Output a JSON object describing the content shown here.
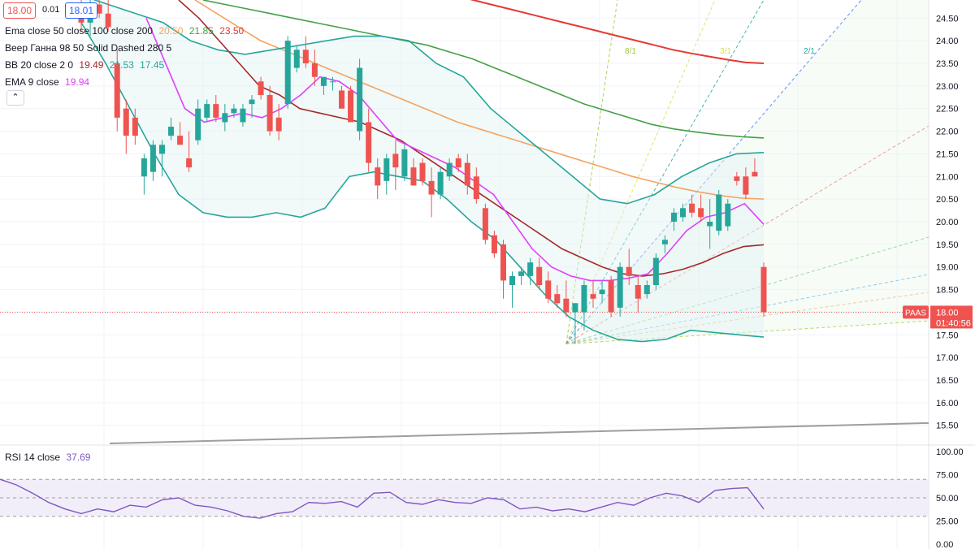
{
  "header": {
    "bid": "18.00",
    "spread": "0.01",
    "ask": "18.01"
  },
  "legend": {
    "ema": {
      "name": "Ema close 50 close 100 close 200",
      "v50": "20.50",
      "v100": "21.85",
      "v200": "23.50"
    },
    "gann": {
      "name": "Веер Ганна 98 50 Solid Dashed 280 5"
    },
    "bb": {
      "name": "BB 20 close 2 0",
      "mid": "19.49",
      "upper": "21.53",
      "lower": "17.45"
    },
    "ema9": {
      "name": "EMA 9 close",
      "value": "19.94"
    },
    "rsi": {
      "name": "RSI 14 close",
      "value": "37.69"
    }
  },
  "colors": {
    "up": "#26a69a",
    "down": "#ef5350",
    "ema50": "#f4a460",
    "ema100": "#43a047",
    "ema200": "#e53935",
    "bb": "#26a69a",
    "bb_mid": "#a52a2a",
    "ema9": "#e040fb",
    "rsi": "#7e57c2"
  },
  "price_tag": {
    "symbol": "PAAS",
    "price": "18.00",
    "countdown": "01:40:56"
  },
  "chart_data": {
    "type": "candlestick",
    "yaxis": {
      "ticks": [
        "24.50",
        "24.00",
        "23.50",
        "23.00",
        "22.50",
        "22.00",
        "21.50",
        "21.00",
        "20.50",
        "20.00",
        "19.50",
        "19.00",
        "18.50",
        "18.00",
        "17.50",
        "17.00",
        "16.50",
        "16.00",
        "15.50"
      ],
      "range": [
        15.1,
        24.9
      ]
    },
    "rsi_axis": {
      "ticks": [
        "100.00",
        "75.00",
        "50.00",
        "25.00",
        "0.00"
      ],
      "range": [
        0,
        100
      ],
      "band": [
        30,
        70
      ]
    },
    "fan_labels": [
      "8/1",
      "3/1",
      "2/1"
    ],
    "candles": [
      {
        "o": 24.5,
        "h": 25.0,
        "l": 24.2,
        "c": 24.4
      },
      {
        "o": 24.4,
        "h": 24.9,
        "l": 24.1,
        "c": 24.8
      },
      {
        "o": 24.8,
        "h": 25.2,
        "l": 24.5,
        "c": 24.6
      },
      {
        "o": 24.6,
        "h": 24.9,
        "l": 24.2,
        "c": 24.3
      },
      {
        "o": 23.5,
        "h": 23.8,
        "l": 22.0,
        "c": 22.3
      },
      {
        "o": 22.5,
        "h": 22.7,
        "l": 21.5,
        "c": 21.9
      },
      {
        "o": 22.3,
        "h": 22.5,
        "l": 21.7,
        "c": 21.9
      },
      {
        "o": 21.0,
        "h": 21.5,
        "l": 20.6,
        "c": 21.4
      },
      {
        "o": 21.1,
        "h": 21.8,
        "l": 20.9,
        "c": 21.7
      },
      {
        "o": 21.5,
        "h": 21.8,
        "l": 21.0,
        "c": 21.7
      },
      {
        "o": 21.9,
        "h": 22.3,
        "l": 21.8,
        "c": 22.1
      },
      {
        "o": 21.9,
        "h": 22.2,
        "l": 21.7,
        "c": 21.7
      },
      {
        "o": 21.4,
        "h": 22.0,
        "l": 21.1,
        "c": 21.2
      },
      {
        "o": 21.8,
        "h": 22.7,
        "l": 21.7,
        "c": 22.5
      },
      {
        "o": 22.3,
        "h": 22.7,
        "l": 22.2,
        "c": 22.6
      },
      {
        "o": 22.6,
        "h": 22.8,
        "l": 22.2,
        "c": 22.3
      },
      {
        "o": 22.2,
        "h": 22.6,
        "l": 22.0,
        "c": 22.4
      },
      {
        "o": 22.4,
        "h": 22.6,
        "l": 22.3,
        "c": 22.5
      },
      {
        "o": 22.2,
        "h": 22.6,
        "l": 22.1,
        "c": 22.5
      },
      {
        "o": 22.6,
        "h": 22.8,
        "l": 22.3,
        "c": 22.7
      },
      {
        "o": 23.1,
        "h": 23.2,
        "l": 22.7,
        "c": 22.8
      },
      {
        "o": 22.8,
        "h": 23.0,
        "l": 21.9,
        "c": 22.0
      },
      {
        "o": 22.3,
        "h": 22.6,
        "l": 21.8,
        "c": 22.0
      },
      {
        "o": 22.6,
        "h": 24.1,
        "l": 22.5,
        "c": 24.0
      },
      {
        "o": 23.4,
        "h": 23.9,
        "l": 23.3,
        "c": 23.8
      },
      {
        "o": 23.8,
        "h": 24.1,
        "l": 23.4,
        "c": 23.5
      },
      {
        "o": 23.5,
        "h": 23.8,
        "l": 23.0,
        "c": 23.2
      },
      {
        "o": 23.0,
        "h": 23.2,
        "l": 22.8,
        "c": 23.2
      },
      {
        "o": 23.1,
        "h": 23.2,
        "l": 22.9,
        "c": 23.1
      },
      {
        "o": 22.9,
        "h": 23.0,
        "l": 22.5,
        "c": 22.5
      },
      {
        "o": 22.9,
        "h": 23.0,
        "l": 22.2,
        "c": 22.2
      },
      {
        "o": 22.0,
        "h": 23.6,
        "l": 21.8,
        "c": 23.4
      },
      {
        "o": 22.2,
        "h": 22.5,
        "l": 21.1,
        "c": 21.3
      },
      {
        "o": 21.2,
        "h": 21.4,
        "l": 20.5,
        "c": 20.8
      },
      {
        "o": 20.9,
        "h": 21.5,
        "l": 20.6,
        "c": 21.4
      },
      {
        "o": 21.5,
        "h": 21.8,
        "l": 20.7,
        "c": 21.2
      },
      {
        "o": 21.0,
        "h": 21.7,
        "l": 20.9,
        "c": 21.6
      },
      {
        "o": 21.2,
        "h": 21.4,
        "l": 20.8,
        "c": 20.8
      },
      {
        "o": 21.3,
        "h": 21.4,
        "l": 20.8,
        "c": 20.9
      },
      {
        "o": 20.9,
        "h": 21.2,
        "l": 20.1,
        "c": 20.6
      },
      {
        "o": 20.6,
        "h": 21.2,
        "l": 20.5,
        "c": 21.1
      },
      {
        "o": 21.0,
        "h": 21.4,
        "l": 20.9,
        "c": 21.3
      },
      {
        "o": 21.4,
        "h": 21.5,
        "l": 21.1,
        "c": 21.2
      },
      {
        "o": 21.3,
        "h": 21.5,
        "l": 20.6,
        "c": 20.8
      },
      {
        "o": 21.0,
        "h": 21.2,
        "l": 20.4,
        "c": 20.5
      },
      {
        "o": 20.3,
        "h": 20.4,
        "l": 19.5,
        "c": 19.6
      },
      {
        "o": 19.7,
        "h": 19.8,
        "l": 19.2,
        "c": 19.3
      },
      {
        "o": 19.5,
        "h": 19.6,
        "l": 18.3,
        "c": 18.7
      },
      {
        "o": 18.6,
        "h": 18.9,
        "l": 18.1,
        "c": 18.8
      },
      {
        "o": 18.8,
        "h": 19.0,
        "l": 18.6,
        "c": 18.9
      },
      {
        "o": 18.8,
        "h": 19.2,
        "l": 18.6,
        "c": 19.1
      },
      {
        "o": 19.0,
        "h": 19.2,
        "l": 18.5,
        "c": 18.6
      },
      {
        "o": 18.7,
        "h": 18.9,
        "l": 18.2,
        "c": 18.3
      },
      {
        "o": 18.4,
        "h": 18.6,
        "l": 18.1,
        "c": 18.2
      },
      {
        "o": 18.3,
        "h": 18.7,
        "l": 17.9,
        "c": 18.0
      },
      {
        "o": 18.0,
        "h": 18.2,
        "l": 17.3,
        "c": 18.2
      },
      {
        "o": 18.0,
        "h": 18.7,
        "l": 17.6,
        "c": 18.6
      },
      {
        "o": 18.4,
        "h": 18.7,
        "l": 18.1,
        "c": 18.3
      },
      {
        "o": 18.4,
        "h": 18.7,
        "l": 18.2,
        "c": 18.5
      },
      {
        "o": 18.7,
        "h": 18.8,
        "l": 17.9,
        "c": 18.0
      },
      {
        "o": 18.1,
        "h": 19.1,
        "l": 17.9,
        "c": 19.0
      },
      {
        "o": 19.0,
        "h": 19.4,
        "l": 18.6,
        "c": 18.8
      },
      {
        "o": 18.6,
        "h": 18.8,
        "l": 18.0,
        "c": 18.3
      },
      {
        "o": 18.4,
        "h": 18.7,
        "l": 18.3,
        "c": 18.6
      },
      {
        "o": 18.6,
        "h": 19.3,
        "l": 18.5,
        "c": 19.2
      },
      {
        "o": 19.5,
        "h": 19.7,
        "l": 19.3,
        "c": 19.6
      },
      {
        "o": 20.0,
        "h": 20.3,
        "l": 19.8,
        "c": 20.2
      },
      {
        "o": 20.1,
        "h": 20.4,
        "l": 20.0,
        "c": 20.3
      },
      {
        "o": 20.4,
        "h": 20.6,
        "l": 20.1,
        "c": 20.2
      },
      {
        "o": 20.3,
        "h": 20.6,
        "l": 20.0,
        "c": 20.1
      },
      {
        "o": 19.9,
        "h": 20.5,
        "l": 19.4,
        "c": 20.0
      },
      {
        "o": 19.8,
        "h": 20.7,
        "l": 19.7,
        "c": 20.6
      },
      {
        "o": 19.9,
        "h": 20.5,
        "l": 19.8,
        "c": 20.4
      },
      {
        "o": 21.0,
        "h": 21.1,
        "l": 20.8,
        "c": 20.9
      },
      {
        "o": 21.0,
        "h": 21.2,
        "l": 20.5,
        "c": 20.6
      },
      {
        "o": 21.1,
        "h": 21.4,
        "l": 21.0,
        "c": 21.0
      },
      {
        "o": 19.0,
        "h": 19.1,
        "l": 17.9,
        "c": 18.0
      }
    ],
    "ema50": [
      24.9,
      24.6,
      24.3,
      24.0,
      23.8,
      23.6,
      23.4,
      23.2,
      23.0,
      22.8,
      22.6,
      22.4,
      22.2,
      22.05,
      21.9,
      21.75,
      21.6,
      21.45,
      21.3,
      21.15,
      21.0,
      20.88,
      20.76,
      20.66,
      20.58,
      20.52,
      20.5
    ],
    "ema100": [
      24.9,
      24.8,
      24.7,
      24.6,
      24.5,
      24.4,
      24.3,
      24.2,
      24.1,
      24.0,
      23.9,
      23.75,
      23.6,
      23.4,
      23.2,
      23.0,
      22.8,
      22.6,
      22.45,
      22.3,
      22.15,
      22.05,
      21.98,
      21.92,
      21.88,
      21.85
    ],
    "ema200": [
      25.0,
      24.9,
      24.8,
      24.7,
      24.6,
      24.5,
      24.4,
      24.3,
      24.2,
      24.1,
      24.0,
      23.9,
      23.8,
      23.72,
      23.65,
      23.58,
      23.52,
      23.5
    ],
    "bb_mid": [
      24.9,
      24.5,
      24.0,
      23.5,
      23.0,
      22.8,
      22.5,
      22.4,
      22.3,
      22.2,
      22.0,
      21.8,
      21.5,
      21.2,
      20.9,
      20.6,
      20.3,
      20.0,
      19.7,
      19.4,
      19.2,
      19.0,
      18.85,
      18.8,
      18.85,
      18.95,
      19.1,
      19.3,
      19.45,
      19.49
    ],
    "bb_upper": [
      25.0,
      24.8,
      24.6,
      24.4,
      24.0,
      23.8,
      23.7,
      23.8,
      23.9,
      24.0,
      24.1,
      24.1,
      24.0,
      23.5,
      23.2,
      22.5,
      22.0,
      21.5,
      21.0,
      20.5,
      20.4,
      20.6,
      21.0,
      21.3,
      21.5,
      21.53
    ],
    "bb_lower": [
      24.4,
      23.5,
      22.5,
      21.5,
      20.6,
      20.2,
      20.1,
      20.1,
      20.2,
      20.1,
      20.3,
      21.0,
      21.1,
      21.0,
      20.9,
      20.5,
      20.0,
      19.6,
      19.0,
      18.4,
      17.9,
      17.6,
      17.4,
      17.35,
      17.4,
      17.6,
      17.55,
      17.5,
      17.45
    ],
    "ema9": [
      24.5,
      23.5,
      22.5,
      22.2,
      22.3,
      22.4,
      22.3,
      22.5,
      22.8,
      23.2,
      23.1,
      22.8,
      22.3,
      21.8,
      21.6,
      21.4,
      21.2,
      20.9,
      20.6,
      20.0,
      19.4,
      19.0,
      18.8,
      18.7,
      18.7,
      18.75,
      18.85,
      19.3,
      19.8,
      20.1,
      20.2,
      20.4,
      19.94
    ],
    "rsi": [
      70,
      64,
      55,
      45,
      38,
      33,
      38,
      35,
      42,
      40,
      48,
      50,
      42,
      40,
      36,
      30,
      28,
      33,
      35,
      45,
      44,
      46,
      40,
      55,
      56,
      45,
      43,
      48,
      45,
      44,
      50,
      48,
      38,
      40,
      36,
      38,
      35,
      40,
      45,
      42,
      50,
      55,
      52,
      45,
      58,
      60,
      61,
      38
    ]
  }
}
